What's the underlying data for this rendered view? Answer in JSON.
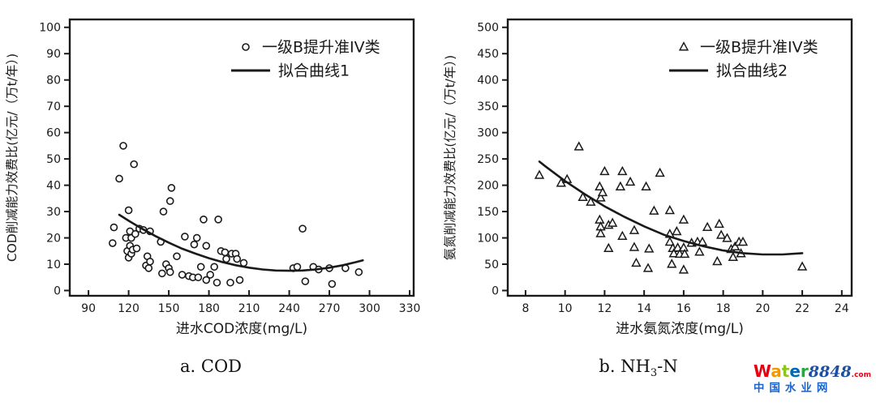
{
  "captions": {
    "a": "a. COD",
    "b_prefix": "b. NH",
    "b_sub": "3",
    "b_suffix": "-N"
  },
  "watermark": {
    "letters": [
      {
        "ch": "W",
        "color": "#e60012"
      },
      {
        "ch": "a",
        "color": "#f39800"
      },
      {
        "ch": "t",
        "color": "#8fc31f"
      },
      {
        "ch": "e",
        "color": "#0068b7"
      },
      {
        "ch": "r",
        "color": "#22ac38"
      }
    ],
    "number": "8848",
    "number_color": "#1d50a2",
    "dotcom": ".com",
    "dotcom_color": "#e60012",
    "subtitle": "中国水业网",
    "subtitle_color": "#1c64cc"
  },
  "chart_data": [
    {
      "id": "a",
      "type": "scatter",
      "title": "a. COD",
      "xlabel": "进水COD浓度(mg/L)",
      "ylabel": "COD削减能力效费比(亿元/（万t/年）)",
      "xlim": [
        90,
        330
      ],
      "ylim": [
        0,
        100
      ],
      "x_edge": [
        76,
        333
      ],
      "y_edge": [
        -2,
        103
      ],
      "xticks": [
        90,
        120,
        150,
        180,
        210,
        240,
        270,
        300,
        330
      ],
      "yticks": [
        0,
        10,
        20,
        30,
        40,
        50,
        60,
        70,
        80,
        90,
        100
      ],
      "grid": false,
      "legend_position": "top-right",
      "ink": "#1a1a1a",
      "legend": [
        {
          "label": "一级B提升准IV类",
          "marker": "circle"
        },
        {
          "label": "拟合曲线1",
          "marker": "line"
        }
      ],
      "series": [
        {
          "name": "一级B提升准IV类",
          "type": "scatter",
          "marker": "circle",
          "points": [
            [
              108,
              18
            ],
            [
              109,
              24
            ],
            [
              113,
              42.5
            ],
            [
              116,
              55
            ],
            [
              118,
              20
            ],
            [
              119,
              15
            ],
            [
              120,
              30.5
            ],
            [
              120,
              12.5
            ],
            [
              121,
              22.5
            ],
            [
              121,
              17
            ],
            [
              122,
              20
            ],
            [
              122,
              14
            ],
            [
              123,
              15.5
            ],
            [
              124,
              48
            ],
            [
              125,
              21.5
            ],
            [
              126,
              16
            ],
            [
              128,
              23.5
            ],
            [
              131,
              23
            ],
            [
              133,
              9.5
            ],
            [
              134,
              13
            ],
            [
              135,
              8.5
            ],
            [
              136,
              22.5
            ],
            [
              136,
              11
            ],
            [
              144,
              18.5
            ],
            [
              145,
              6.5
            ],
            [
              146,
              30
            ],
            [
              148,
              10
            ],
            [
              150,
              8.5
            ],
            [
              151,
              34
            ],
            [
              151,
              7
            ],
            [
              152,
              39
            ],
            [
              156,
              13
            ],
            [
              160,
              6
            ],
            [
              162,
              20.5
            ],
            [
              165,
              5.5
            ],
            [
              168,
              5
            ],
            [
              169,
              17.5
            ],
            [
              171,
              20
            ],
            [
              172,
              5
            ],
            [
              174,
              9
            ],
            [
              176,
              27
            ],
            [
              178,
              17
            ],
            [
              178,
              4
            ],
            [
              181,
              6
            ],
            [
              184,
              9
            ],
            [
              186,
              3
            ],
            [
              187,
              27
            ],
            [
              189,
              15
            ],
            [
              192,
              14.5
            ],
            [
              193,
              12
            ],
            [
              196,
              3
            ],
            [
              197,
              14
            ],
            [
              200,
              14
            ],
            [
              201,
              12
            ],
            [
              203,
              4
            ],
            [
              206,
              10.5
            ],
            [
              243,
              8.5
            ],
            [
              246,
              9
            ],
            [
              250,
              23.5
            ],
            [
              252,
              3.5
            ],
            [
              258,
              9
            ],
            [
              262,
              8
            ],
            [
              270,
              8.5
            ],
            [
              272,
              2.5
            ],
            [
              282,
              8.5
            ],
            [
              292,
              7
            ]
          ]
        },
        {
          "name": "拟合曲线1",
          "type": "line",
          "points": [
            [
              113,
              28.8
            ],
            [
              120,
              26.5
            ],
            [
              130,
              23.5
            ],
            [
              140,
              20.7
            ],
            [
              150,
              18.2
            ],
            [
              160,
              15.9
            ],
            [
              170,
              14
            ],
            [
              180,
              12.3
            ],
            [
              190,
              10.8
            ],
            [
              200,
              9.6
            ],
            [
              210,
              8.7
            ],
            [
              220,
              8
            ],
            [
              230,
              7.6
            ],
            [
              240,
              7.5
            ],
            [
              250,
              7.6
            ],
            [
              260,
              8
            ],
            [
              270,
              8.7
            ],
            [
              280,
              9.6
            ],
            [
              290,
              10.8
            ],
            [
              295,
              11.5
            ]
          ]
        }
      ]
    },
    {
      "id": "b",
      "type": "scatter",
      "title": "b. NH3-N",
      "xlabel": "进水氨氮浓度(mg/L)",
      "ylabel": "氨氮削减能力效费比(亿元/（万t/年）)",
      "xlim": [
        8,
        24
      ],
      "ylim": [
        0,
        500
      ],
      "x_edge": [
        7.1,
        24.5
      ],
      "y_edge": [
        -10,
        515
      ],
      "xticks": [
        8,
        10,
        12,
        14,
        16,
        18,
        20,
        22,
        24
      ],
      "yticks": [
        0,
        50,
        100,
        150,
        200,
        250,
        300,
        350,
        400,
        450,
        500
      ],
      "grid": false,
      "legend_position": "top-right",
      "ink": "#1a1a1a",
      "legend": [
        {
          "label": "一级B提升准IV类",
          "marker": "triangle"
        },
        {
          "label": "拟合曲线2",
          "marker": "line"
        }
      ],
      "series": [
        {
          "name": "一级B提升准IV类",
          "type": "scatter",
          "marker": "triangle",
          "points": [
            [
              8.7,
              219
            ],
            [
              9.8,
              204
            ],
            [
              10.1,
              211
            ],
            [
              10.7,
              273
            ],
            [
              10.9,
              177
            ],
            [
              11.3,
              168
            ],
            [
              11.75,
              197
            ],
            [
              11.75,
              134
            ],
            [
              11.8,
              176
            ],
            [
              11.8,
              121
            ],
            [
              11.8,
              108
            ],
            [
              11.9,
              186
            ],
            [
              12,
              226
            ],
            [
              12.2,
              124
            ],
            [
              12.2,
              80
            ],
            [
              12.4,
              128
            ],
            [
              12.8,
              197
            ],
            [
              12.9,
              226
            ],
            [
              12.9,
              103
            ],
            [
              13.3,
              206
            ],
            [
              13.5,
              114
            ],
            [
              13.5,
              82
            ],
            [
              13.6,
              52
            ],
            [
              14.1,
              197
            ],
            [
              14.2,
              42
            ],
            [
              14.25,
              79
            ],
            [
              14.5,
              151
            ],
            [
              14.8,
              223
            ],
            [
              15.3,
              152
            ],
            [
              15.3,
              107
            ],
            [
              15.3,
              92
            ],
            [
              15.4,
              50
            ],
            [
              15.45,
              80
            ],
            [
              15.5,
              70
            ],
            [
              15.65,
              112
            ],
            [
              15.7,
              81
            ],
            [
              15.8,
              69
            ],
            [
              16,
              134
            ],
            [
              16,
              81
            ],
            [
              16,
              39
            ],
            [
              16.05,
              69
            ],
            [
              16.4,
              90
            ],
            [
              16.7,
              92
            ],
            [
              16.8,
              73
            ],
            [
              16.95,
              92
            ],
            [
              17.2,
              120
            ],
            [
              17.7,
              55
            ],
            [
              17.8,
              126
            ],
            [
              17.9,
              105
            ],
            [
              18.2,
              99
            ],
            [
              18.4,
              78
            ],
            [
              18.5,
              63
            ],
            [
              18.6,
              83
            ],
            [
              18.8,
              92
            ],
            [
              18.9,
              70
            ],
            [
              19,
              92
            ],
            [
              22,
              45
            ]
          ]
        },
        {
          "name": "拟合曲线2",
          "type": "line",
          "points": [
            [
              8.7,
              245
            ],
            [
              9,
              236
            ],
            [
              10,
              208
            ],
            [
              11,
              183
            ],
            [
              12,
              160
            ],
            [
              13,
              140
            ],
            [
              14,
              122
            ],
            [
              15,
              106
            ],
            [
              16,
              94
            ],
            [
              17,
              84
            ],
            [
              18,
              76
            ],
            [
              19,
              71
            ],
            [
              20,
              68.5
            ],
            [
              21,
              68.5
            ],
            [
              22,
              71
            ]
          ]
        }
      ]
    }
  ]
}
